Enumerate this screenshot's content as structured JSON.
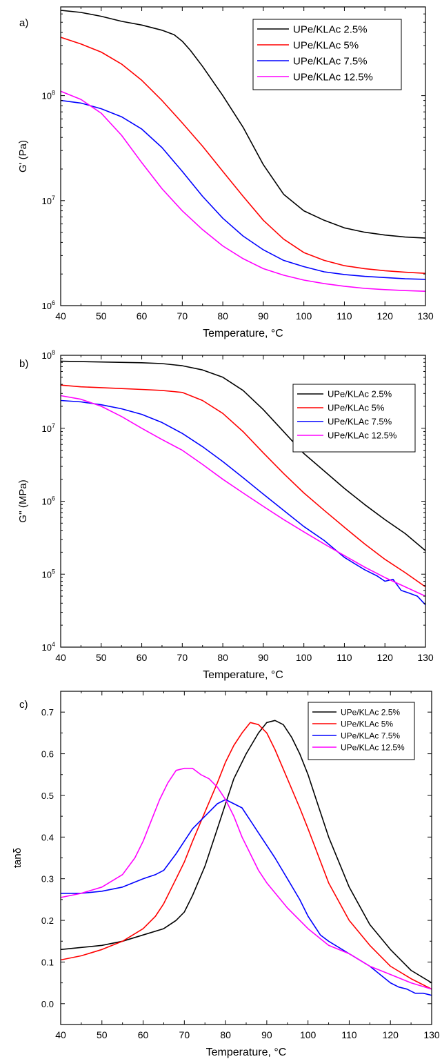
{
  "chart_data": [
    {
      "type": "line",
      "panel_label": "a)",
      "xlabel": "Temperature, °C",
      "ylabel": "G' (Pa)",
      "y_scale": "log",
      "xlim": [
        40,
        130
      ],
      "ylim": [
        1000000,
        700000000
      ],
      "x_ticks": [
        "40",
        "50",
        "60",
        "70",
        "80",
        "90",
        "100",
        "110",
        "120",
        "130"
      ],
      "y_ticks": [
        {
          "base": "10",
          "exp": "6",
          "value": 1000000
        },
        {
          "base": "10",
          "exp": "7",
          "value": 10000000
        },
        {
          "base": "10",
          "exp": "8",
          "value": 100000000
        }
      ],
      "legend_position": "top-right",
      "series": [
        {
          "name": "UPe/KLAc 2.5%",
          "color": "#000000",
          "x": [
            40,
            45,
            50,
            55,
            60,
            65,
            68,
            70,
            72,
            75,
            80,
            85,
            90,
            95,
            100,
            105,
            110,
            115,
            120,
            125,
            130
          ],
          "y": [
            650000000,
            620000000,
            570000000,
            510000000,
            470000000,
            420000000,
            380000000,
            330000000,
            270000000,
            190000000,
            100000000,
            50000000,
            22000000,
            11500000,
            8000000,
            6500000,
            5500000,
            5000000,
            4700000,
            4500000,
            4400000
          ]
        },
        {
          "name": "UPe/KLAc 5%",
          "color": "#ff0000",
          "x": [
            40,
            45,
            50,
            55,
            60,
            65,
            70,
            75,
            80,
            85,
            90,
            95,
            100,
            105,
            110,
            115,
            120,
            125,
            130
          ],
          "y": [
            360000000,
            310000000,
            260000000,
            200000000,
            140000000,
            90000000,
            55000000,
            33000000,
            19000000,
            11000000,
            6500000,
            4300000,
            3200000,
            2700000,
            2400000,
            2250000,
            2150000,
            2080000,
            2030000
          ]
        },
        {
          "name": "UPe/KLAc 7.5%",
          "color": "#0000ff",
          "x": [
            40,
            45,
            50,
            55,
            60,
            65,
            70,
            75,
            80,
            85,
            90,
            95,
            100,
            105,
            110,
            115,
            120,
            125,
            130
          ],
          "y": [
            90000000,
            85000000,
            75000000,
            63000000,
            48000000,
            32000000,
            19000000,
            11000000,
            6800000,
            4600000,
            3400000,
            2700000,
            2350000,
            2100000,
            1980000,
            1900000,
            1850000,
            1800000,
            1780000
          ]
        },
        {
          "name": "UPe/KLAc 12.5%",
          "color": "#ff00ff",
          "x": [
            40,
            45,
            50,
            55,
            60,
            65,
            70,
            75,
            80,
            85,
            90,
            95,
            100,
            105,
            110,
            115,
            120,
            125,
            130
          ],
          "y": [
            110000000,
            92000000,
            68000000,
            42000000,
            23000000,
            13000000,
            8000000,
            5300000,
            3700000,
            2800000,
            2250000,
            1950000,
            1750000,
            1620000,
            1530000,
            1460000,
            1420000,
            1390000,
            1370000
          ]
        }
      ]
    },
    {
      "type": "line",
      "panel_label": "b)",
      "xlabel": "Temperature, °C",
      "ylabel": "G'' (MPa)",
      "y_scale": "log",
      "xlim": [
        40,
        130
      ],
      "ylim": [
        10000,
        100000000
      ],
      "x_ticks": [
        "40",
        "50",
        "60",
        "70",
        "80",
        "90",
        "100",
        "110",
        "120",
        "130"
      ],
      "y_ticks": [
        {
          "base": "10",
          "exp": "4",
          "value": 10000
        },
        {
          "base": "10",
          "exp": "5",
          "value": 100000
        },
        {
          "base": "10",
          "exp": "6",
          "value": 1000000
        },
        {
          "base": "10",
          "exp": "7",
          "value": 10000000
        },
        {
          "base": "10",
          "exp": "8",
          "value": 100000000
        }
      ],
      "legend_position": "top-right",
      "series": [
        {
          "name": "UPe/KLAc 2.5%",
          "color": "#000000",
          "x": [
            40,
            50,
            60,
            65,
            70,
            75,
            80,
            85,
            90,
            95,
            100,
            105,
            110,
            115,
            120,
            125,
            130
          ],
          "y": [
            83000000,
            81000000,
            79000000,
            77000000,
            72000000,
            63000000,
            50000000,
            33000000,
            18000000,
            9000000,
            4500000,
            2600000,
            1500000,
            900000,
            560000,
            360000,
            210000
          ]
        },
        {
          "name": "UPe/KLAc 5%",
          "color": "#ff0000",
          "x": [
            40,
            45,
            50,
            55,
            60,
            65,
            70,
            75,
            80,
            85,
            90,
            95,
            100,
            105,
            110,
            115,
            120,
            125,
            130
          ],
          "y": [
            39000000,
            37000000,
            36000000,
            35000000,
            34000000,
            33000000,
            31000000,
            24000000,
            16000000,
            9000000,
            4600000,
            2400000,
            1300000,
            750000,
            440000,
            260000,
            160000,
            105000,
            67000
          ]
        },
        {
          "name": "UPe/KLAc 7.5%",
          "color": "#0000ff",
          "x": [
            40,
            45,
            50,
            55,
            60,
            65,
            70,
            75,
            80,
            85,
            90,
            95,
            100,
            105,
            110,
            115,
            118,
            120,
            122,
            124,
            126,
            128,
            130
          ],
          "y": [
            24000000,
            23000000,
            21000000,
            18500000,
            15500000,
            12000000,
            8500000,
            5600000,
            3500000,
            2100000,
            1250000,
            750000,
            450000,
            290000,
            170000,
            115000,
            95000,
            80000,
            85000,
            60000,
            55000,
            50000,
            38000
          ]
        },
        {
          "name": "UPe/KLAc 12.5%",
          "color": "#ff00ff",
          "x": [
            40,
            45,
            50,
            55,
            60,
            65,
            70,
            75,
            80,
            85,
            90,
            95,
            100,
            105,
            110,
            115,
            120,
            125,
            130
          ],
          "y": [
            28000000,
            25000000,
            20000000,
            14500000,
            10000000,
            7000000,
            5000000,
            3200000,
            2000000,
            1300000,
            850000,
            560000,
            380000,
            260000,
            180000,
            125000,
            90000,
            67000,
            50000
          ]
        }
      ]
    },
    {
      "type": "line",
      "panel_label": "c)",
      "xlabel": "Temperature, °C",
      "ylabel": "tanδ",
      "y_scale": "linear",
      "xlim": [
        40,
        130
      ],
      "ylim": [
        -0.05,
        0.75
      ],
      "x_ticks": [
        "40",
        "50",
        "60",
        "70",
        "80",
        "90",
        "100",
        "110",
        "120",
        "130"
      ],
      "y_ticks": [
        "0.0",
        "0.1",
        "0.2",
        "0.3",
        "0.4",
        "0.5",
        "0.6",
        "0.7"
      ],
      "legend_position": "top-right",
      "series": [
        {
          "name": "UPe/KLAc 2.5%",
          "color": "#000000",
          "x": [
            40,
            45,
            50,
            55,
            60,
            65,
            68,
            70,
            72,
            75,
            78,
            80,
            82,
            85,
            88,
            90,
            92,
            94,
            96,
            98,
            100,
            102,
            105,
            110,
            115,
            120,
            125,
            130
          ],
          "y": [
            0.13,
            0.135,
            0.14,
            0.15,
            0.165,
            0.18,
            0.2,
            0.22,
            0.26,
            0.33,
            0.42,
            0.48,
            0.54,
            0.6,
            0.65,
            0.675,
            0.68,
            0.67,
            0.64,
            0.6,
            0.55,
            0.49,
            0.4,
            0.28,
            0.19,
            0.13,
            0.08,
            0.05
          ]
        },
        {
          "name": "UPe/KLAc 5%",
          "color": "#ff0000",
          "x": [
            40,
            45,
            50,
            55,
            60,
            63,
            65,
            68,
            70,
            72,
            75,
            78,
            80,
            82,
            84,
            86,
            88,
            90,
            92,
            95,
            98,
            100,
            105,
            110,
            115,
            120,
            125,
            130
          ],
          "y": [
            0.105,
            0.115,
            0.13,
            0.15,
            0.18,
            0.21,
            0.24,
            0.3,
            0.34,
            0.39,
            0.46,
            0.53,
            0.58,
            0.62,
            0.65,
            0.675,
            0.67,
            0.65,
            0.61,
            0.54,
            0.47,
            0.42,
            0.29,
            0.2,
            0.14,
            0.09,
            0.06,
            0.035
          ]
        },
        {
          "name": "UPe/KLAc 7.5%",
          "color": "#0000ff",
          "x": [
            40,
            45,
            50,
            55,
            60,
            63,
            65,
            68,
            70,
            72,
            75,
            78,
            80,
            82,
            84,
            86,
            88,
            90,
            92,
            95,
            98,
            100,
            103,
            105,
            110,
            115,
            120,
            122,
            124,
            126,
            128,
            130
          ],
          "y": [
            0.265,
            0.265,
            0.27,
            0.28,
            0.3,
            0.31,
            0.32,
            0.36,
            0.39,
            0.42,
            0.45,
            0.48,
            0.49,
            0.48,
            0.47,
            0.44,
            0.41,
            0.38,
            0.35,
            0.3,
            0.25,
            0.21,
            0.165,
            0.15,
            0.12,
            0.09,
            0.05,
            0.04,
            0.035,
            0.025,
            0.025,
            0.02
          ]
        },
        {
          "name": "UPe/KLAc 12.5%",
          "color": "#ff00ff",
          "x": [
            40,
            45,
            50,
            55,
            58,
            60,
            62,
            64,
            66,
            68,
            70,
            72,
            74,
            76,
            78,
            80,
            82,
            84,
            86,
            88,
            90,
            95,
            100,
            105,
            110,
            115,
            120,
            125,
            130
          ],
          "y": [
            0.255,
            0.265,
            0.28,
            0.31,
            0.35,
            0.39,
            0.44,
            0.49,
            0.53,
            0.56,
            0.565,
            0.565,
            0.55,
            0.54,
            0.52,
            0.49,
            0.45,
            0.4,
            0.36,
            0.32,
            0.29,
            0.23,
            0.18,
            0.14,
            0.12,
            0.09,
            0.07,
            0.05,
            0.035
          ]
        }
      ]
    }
  ]
}
